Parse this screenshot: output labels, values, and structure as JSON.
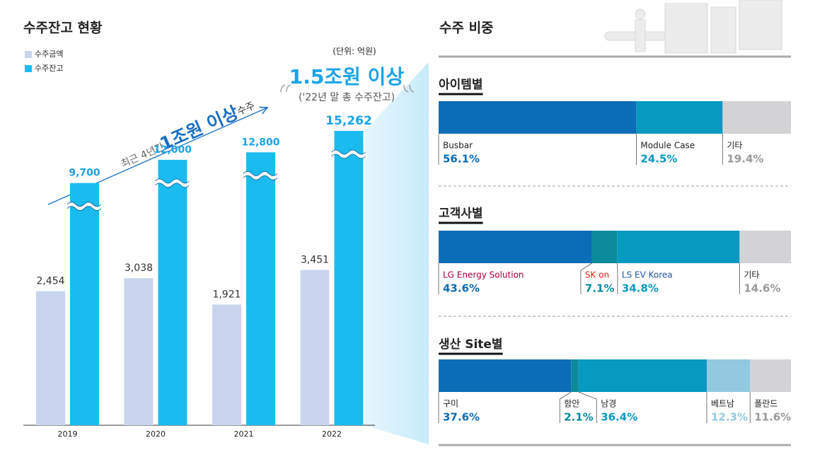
{
  "panel": {
    "title": "수주 비중"
  },
  "chart_data": [
    {
      "type": "bar",
      "title": "수주잔고 현황",
      "unit": "(단위: 억원)",
      "categories": [
        "2019",
        "2020",
        "2021",
        "2022"
      ],
      "series": [
        {
          "name": "수주금액",
          "color": "#c9d5ee",
          "values": [
            2454,
            3038,
            1921,
            3451
          ],
          "value_labels": [
            "2,454",
            "3,038",
            "1,921",
            "3,451"
          ]
        },
        {
          "name": "수주잔고",
          "color": "#1abcf0",
          "values": [
            9700,
            12000,
            12800,
            15262
          ],
          "value_labels": [
            "9,700",
            "12,000",
            "12,800",
            "15,262"
          ]
        }
      ],
      "annotations": {
        "headline": "1.5조원 이상",
        "headline_note": "('22년 말 총 수주잔고)",
        "trend": [
          "최근 4년간",
          "1조원 이상",
          "수주"
        ]
      }
    },
    {
      "type": "stacked-bar",
      "title": "아이템별",
      "categories": [
        "Busbar",
        "Module Case",
        "기타"
      ],
      "values": [
        56.1,
        24.5,
        19.4
      ],
      "value_labels": [
        "56.1%",
        "24.5%",
        "19.4%"
      ],
      "colors": [
        "#0a6db5",
        "#0799c0",
        "#d3d3d5"
      ],
      "label_colors": [
        "#0a6db5",
        "#0799c0",
        "#999999"
      ],
      "name_colors": [
        "#222222",
        "#222222",
        "#222222"
      ]
    },
    {
      "type": "stacked-bar",
      "title": "고객사별",
      "categories": [
        "LG Energy Solution",
        "SK on",
        "LS EV Korea",
        "기타"
      ],
      "values": [
        43.6,
        7.1,
        34.8,
        14.6
      ],
      "value_labels": [
        "43.6%",
        "7.1%",
        "34.8%",
        "14.6%"
      ],
      "colors": [
        "#0a6db5",
        "#0a8a9a",
        "#0799c0",
        "#d3d3d5"
      ],
      "label_colors": [
        "#0a6db5",
        "#0a8a9a",
        "#0799c0",
        "#999999"
      ],
      "name_colors": [
        "#a50034",
        "#e2231a",
        "#1f57a4",
        "#222222"
      ]
    },
    {
      "type": "stacked-bar",
      "title": "생산 Site별",
      "categories": [
        "구미",
        "함안",
        "남경",
        "베트남",
        "폴란드"
      ],
      "values": [
        37.6,
        2.1,
        36.4,
        12.3,
        11.6
      ],
      "value_labels": [
        "37.6%",
        "2.1%",
        "36.4%",
        "12.3%",
        "11.6%"
      ],
      "colors": [
        "#0a6db5",
        "#0a8a9a",
        "#0799c0",
        "#92c9e0",
        "#d3d3d5"
      ],
      "label_colors": [
        "#0a6db5",
        "#0a8a9a",
        "#0799c0",
        "#92c9e0",
        "#999999"
      ],
      "name_colors": [
        "#222222",
        "#222222",
        "#222222",
        "#222222",
        "#222222"
      ]
    }
  ]
}
